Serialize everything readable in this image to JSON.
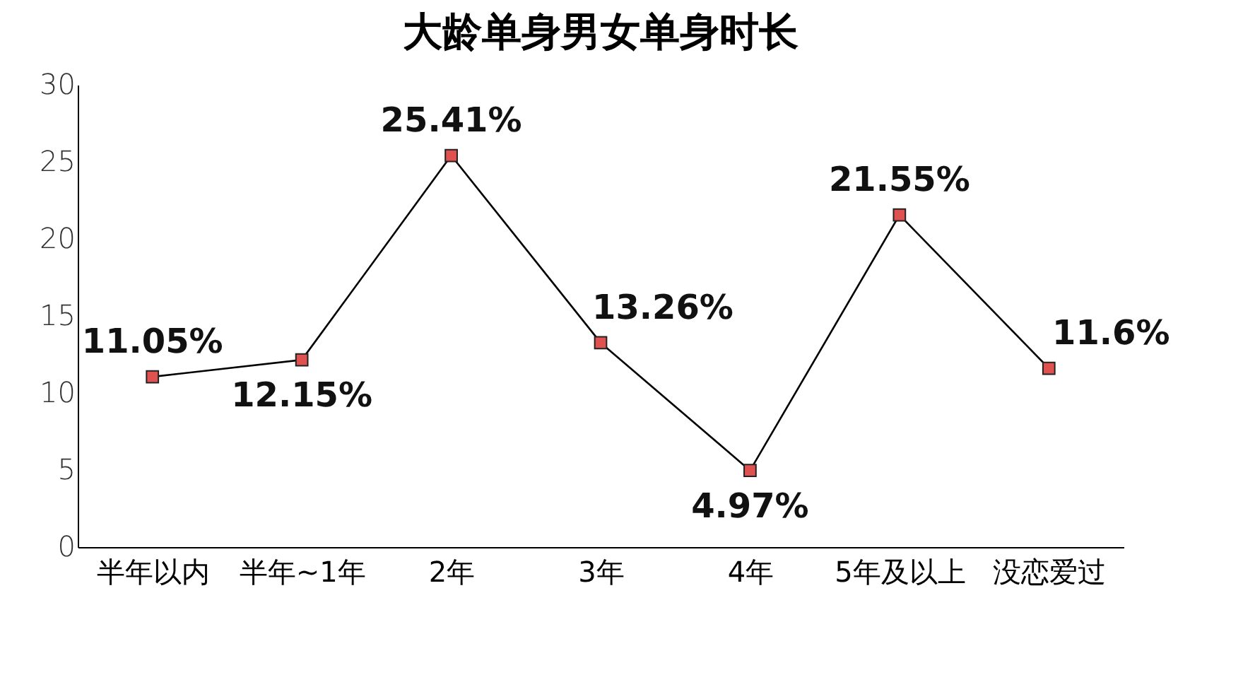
{
  "chart_data": {
    "type": "line",
    "title": "大龄单身男女单身时长",
    "categories": [
      "半年以内",
      "半年~1年",
      "2年",
      "3年",
      "4年",
      "5年及以上",
      "没恋爱过"
    ],
    "series": [
      {
        "color": "#000000",
        "values": [
          11.05,
          12.15,
          25.41,
          13.26,
          4.97,
          21.55,
          11.6
        ],
        "value_labels": [
          "11.05%",
          "12.15%",
          "25.41%",
          "13.26%",
          "4.97%",
          "21.55%",
          "11.6%"
        ]
      }
    ],
    "ylim": [
      0,
      30
    ],
    "yticks": [
      0,
      5,
      10,
      15,
      20,
      25,
      30
    ],
    "marker": "square",
    "line_style": "solid",
    "grid": false
  }
}
